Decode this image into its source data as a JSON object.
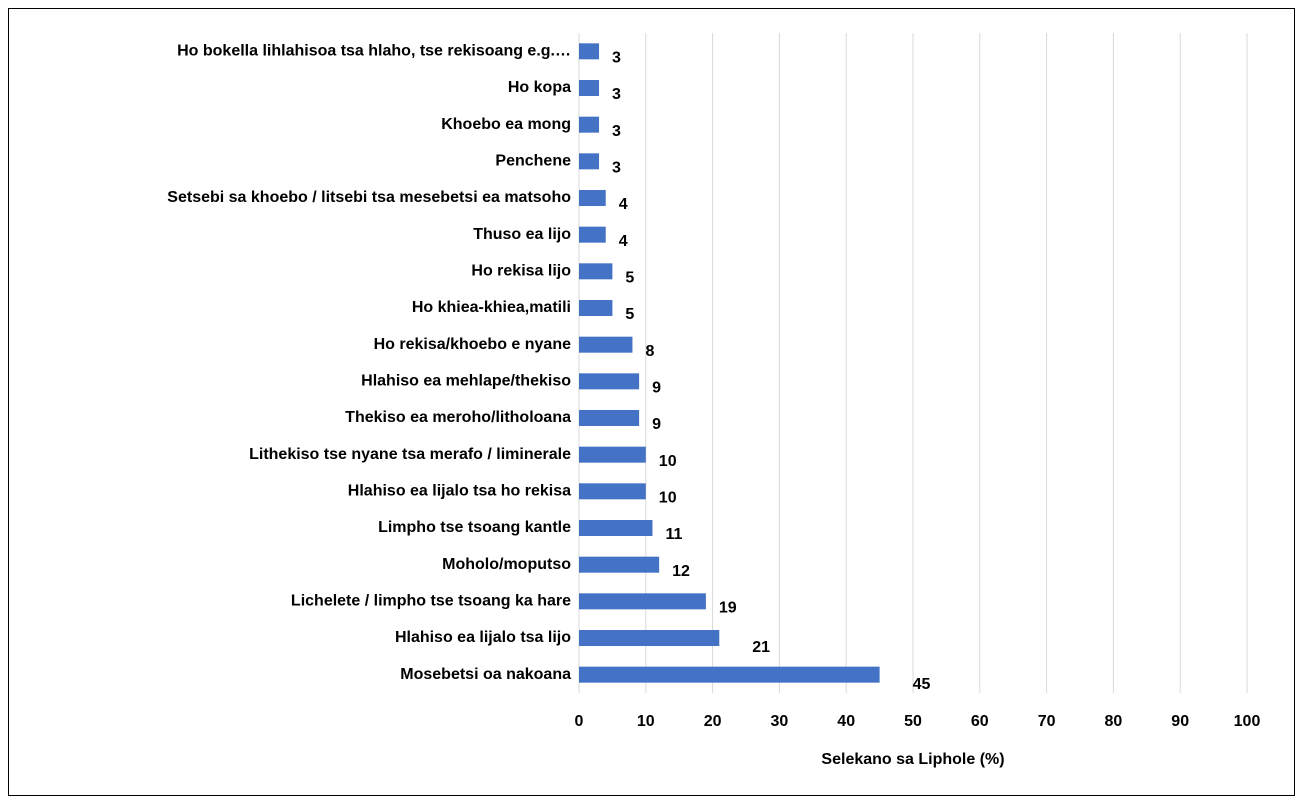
{
  "chart_data": {
    "type": "bar",
    "orientation": "horizontal",
    "x_label": "Selekano sa Liphole (%)",
    "categories": [
      "Ho bokella lihlahisoa tsa hlaho, tse rekisoang e.g.…",
      "Ho kopa",
      "Khoebo ea mong",
      "Penchene",
      "Setsebi sa khoebo / litsebi tsa mesebetsi ea matsoho",
      "Thuso ea lijo",
      "Ho rekisa lijo",
      "Ho khiea-khiea,matili",
      "Ho rekisa/khoebo e nyane",
      "Hlahiso ea mehlape/thekiso",
      "Thekiso ea meroho/litholoana",
      "Lithekiso tse nyane tsa merafo / liminerale",
      "Hlahiso ea lijalo tsa ho rekisa",
      "Limpho tse tsoang kantle",
      "Moholo/moputso",
      "Lichelete / limpho tse tsoang ka hare",
      "Hlahiso ea lijalo tsa lijo",
      "Mosebetsi oa nakoana"
    ],
    "values": [
      3,
      3,
      3,
      3,
      4,
      4,
      5,
      5,
      8,
      9,
      9,
      10,
      10,
      11,
      12,
      19,
      21,
      45
    ],
    "color": "#4472c4",
    "xlim": [
      0,
      100
    ],
    "xticks": [
      0,
      10,
      20,
      30,
      40,
      50,
      60,
      70,
      80,
      90,
      100
    ],
    "grid": true
  }
}
